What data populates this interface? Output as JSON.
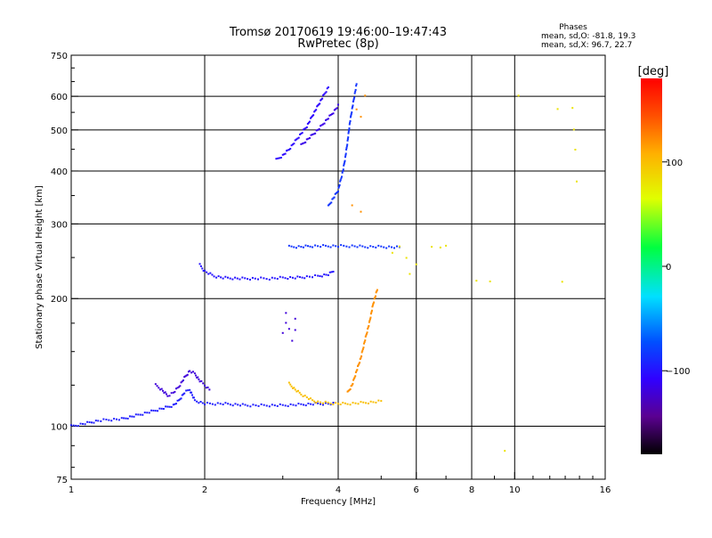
{
  "header": {
    "title_line1": "Tromsø 20170619 19:46:00–19:47:43",
    "title_line2": "RwPretec (8p)",
    "stats_title": "Phases",
    "stats_o": "mean, sd,O: -81.8, 19.3",
    "stats_x": "mean, sd,X:  96.7, 22.7"
  },
  "colorbar": {
    "unit": "[deg]",
    "ticks": [
      {
        "value": 100,
        "label": "100"
      },
      {
        "value": 0,
        "label": "0"
      },
      {
        "value": -100,
        "label": "−100"
      }
    ],
    "range": [
      -180,
      180
    ]
  },
  "chart_data": {
    "type": "scatter",
    "title": "Tromsø 20170619 19:46:00–19:47:43  RwPretec (8p)",
    "xlabel": "Frequency [MHz]",
    "ylabel": "Stationary phase Virtual Height [km]",
    "x_scale": "log",
    "y_scale": "log",
    "xlim": [
      1,
      16
    ],
    "ylim": [
      75,
      750
    ],
    "x_ticks": [
      {
        "value": 1,
        "label": "1"
      },
      {
        "value": 2,
        "label": "2"
      },
      {
        "value": 4,
        "label": "4"
      },
      {
        "value": 6,
        "label": "6"
      },
      {
        "value": 8,
        "label": "8"
      },
      {
        "value": 10,
        "label": "10"
      },
      {
        "value": 16,
        "label": "16"
      }
    ],
    "y_ticks": [
      {
        "value": 75,
        "label": "75"
      },
      {
        "value": 100,
        "label": "100"
      },
      {
        "value": 200,
        "label": "200"
      },
      {
        "value": 300,
        "label": "300"
      },
      {
        "value": 400,
        "label": "400"
      },
      {
        "value": 500,
        "label": "500"
      },
      {
        "value": 600,
        "label": "600"
      },
      {
        "value": 750,
        "label": "750"
      }
    ],
    "grid": true,
    "grid_x": [
      2,
      4,
      6,
      8,
      10
    ],
    "grid_y": [
      100,
      200,
      300,
      400,
      500,
      600
    ],
    "color_scale": "phase [deg], -180 to 180, black-purple-blue-cyan-green-yellow-orange-red",
    "traces": [
      {
        "name": "E-layer trace (O)",
        "phase": -95,
        "points": [
          [
            1.0,
            100
          ],
          [
            1.05,
            101
          ],
          [
            1.1,
            102
          ],
          [
            1.15,
            103
          ],
          [
            1.2,
            103.5
          ],
          [
            1.3,
            104
          ],
          [
            1.4,
            106
          ],
          [
            1.5,
            108
          ],
          [
            1.6,
            110
          ],
          [
            1.7,
            112
          ],
          [
            1.75,
            115
          ],
          [
            1.8,
            120
          ],
          [
            1.85,
            122
          ],
          [
            1.9,
            115
          ],
          [
            2.0,
            113
          ],
          [
            2.2,
            113
          ],
          [
            2.5,
            112
          ],
          [
            2.8,
            112
          ],
          [
            3.0,
            112
          ],
          [
            3.3,
            112.5
          ],
          [
            3.6,
            113
          ],
          [
            3.9,
            113
          ]
        ]
      },
      {
        "name": "E-layer cusp",
        "phase": -120,
        "points": [
          [
            1.55,
            125
          ],
          [
            1.6,
            122
          ],
          [
            1.65,
            118
          ],
          [
            1.7,
            120
          ],
          [
            1.75,
            124
          ],
          [
            1.8,
            130
          ],
          [
            1.85,
            135
          ],
          [
            1.9,
            133
          ],
          [
            1.95,
            128
          ],
          [
            2.0,
            125
          ],
          [
            2.05,
            122
          ]
        ]
      },
      {
        "name": "E-layer trace (X)",
        "phase": 100,
        "points": [
          [
            3.1,
            126
          ],
          [
            3.2,
            122
          ],
          [
            3.3,
            119
          ],
          [
            3.4,
            117
          ],
          [
            3.5,
            115
          ],
          [
            3.6,
            114
          ],
          [
            4.0,
            113
          ],
          [
            4.2,
            113
          ],
          [
            4.5,
            113.5
          ],
          [
            4.8,
            114
          ],
          [
            5.0,
            114.5
          ]
        ]
      },
      {
        "name": "F1 trace (O)",
        "phase": -100,
        "points": [
          [
            1.95,
            240
          ],
          [
            2.0,
            232
          ],
          [
            2.1,
            226
          ],
          [
            2.2,
            224
          ],
          [
            2.4,
            223
          ],
          [
            2.6,
            223
          ],
          [
            2.8,
            223
          ],
          [
            3.0,
            224
          ],
          [
            3.2,
            224
          ],
          [
            3.4,
            225
          ],
          [
            3.6,
            226
          ],
          [
            3.8,
            228
          ],
          [
            3.9,
            232
          ]
        ]
      },
      {
        "name": "F1 band (O)",
        "phase": -85,
        "points": [
          [
            3.1,
            265
          ],
          [
            3.3,
            265
          ],
          [
            3.5,
            266
          ],
          [
            3.7,
            266
          ],
          [
            4.0,
            266
          ],
          [
            4.3,
            266
          ],
          [
            4.6,
            265
          ],
          [
            5.0,
            265
          ],
          [
            5.5,
            264
          ]
        ]
      },
      {
        "name": "F2 trace (O)",
        "phase": -85,
        "points": [
          [
            3.8,
            330
          ],
          [
            3.9,
            345
          ],
          [
            4.0,
            360
          ],
          [
            4.05,
            380
          ],
          [
            4.1,
            400
          ],
          [
            4.15,
            430
          ],
          [
            4.2,
            470
          ],
          [
            4.25,
            520
          ],
          [
            4.3,
            560
          ],
          [
            4.35,
            600
          ],
          [
            4.4,
            640
          ]
        ]
      },
      {
        "name": "F2 high trace",
        "phase": -105,
        "points": [
          [
            2.9,
            425
          ],
          [
            3.0,
            435
          ],
          [
            3.1,
            450
          ],
          [
            3.2,
            470
          ],
          [
            3.3,
            490
          ],
          [
            3.4,
            510
          ],
          [
            3.5,
            540
          ],
          [
            3.6,
            570
          ],
          [
            3.7,
            600
          ],
          [
            3.8,
            630
          ]
        ]
      },
      {
        "name": "F2 mid trace",
        "phase": -115,
        "points": [
          [
            3.3,
            460
          ],
          [
            3.45,
            480
          ],
          [
            3.6,
            500
          ],
          [
            3.75,
            525
          ],
          [
            3.9,
            550
          ],
          [
            4.0,
            570
          ]
        ]
      },
      {
        "name": "F spread (X)",
        "phase": 120,
        "points": [
          [
            4.2,
            120
          ],
          [
            4.3,
            125
          ],
          [
            4.4,
            135
          ],
          [
            4.5,
            145
          ],
          [
            4.6,
            160
          ],
          [
            4.7,
            175
          ],
          [
            4.8,
            195
          ],
          [
            4.9,
            210
          ]
        ]
      },
      {
        "name": "F2 X echoes",
        "phase": 120,
        "points": [
          [
            4.3,
            330
          ],
          [
            4.5,
            320
          ],
          [
            4.4,
            560
          ],
          [
            4.5,
            540
          ],
          [
            4.6,
            600
          ]
        ]
      },
      {
        "name": "Clump 160 km",
        "phase": -120,
        "points": [
          [
            3.0,
            165
          ],
          [
            3.05,
            175
          ],
          [
            3.1,
            170
          ],
          [
            3.15,
            160
          ],
          [
            3.2,
            168
          ],
          [
            3.05,
            185
          ],
          [
            3.2,
            180
          ]
        ]
      },
      {
        "name": "Scattered high-frequency echoes",
        "phase": 80,
        "points": [
          [
            5.3,
            255
          ],
          [
            5.5,
            265
          ],
          [
            5.7,
            250
          ],
          [
            5.8,
            230
          ],
          [
            6.0,
            240
          ],
          [
            6.5,
            265
          ],
          [
            6.8,
            265
          ],
          [
            7.0,
            265
          ],
          [
            8.2,
            220
          ],
          [
            8.8,
            220
          ],
          [
            9.5,
            88
          ],
          [
            10.2,
            600
          ],
          [
            12.5,
            560
          ],
          [
            12.8,
            220
          ],
          [
            13.5,
            560
          ],
          [
            13.6,
            500
          ],
          [
            13.7,
            450
          ],
          [
            13.8,
            380
          ]
        ]
      }
    ]
  }
}
